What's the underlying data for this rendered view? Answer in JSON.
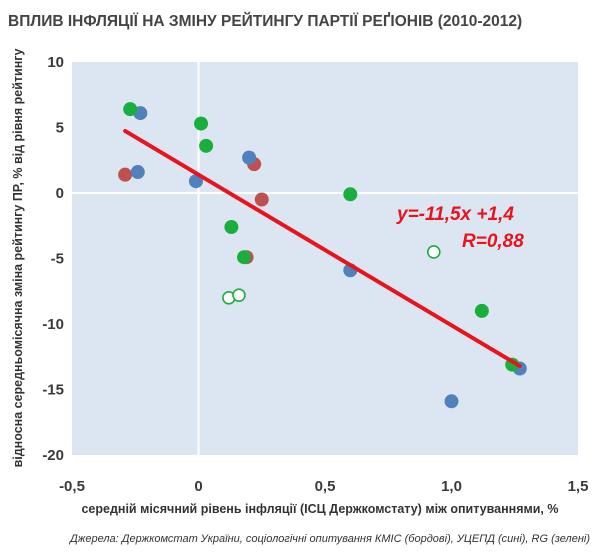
{
  "chart_data": {
    "type": "scatter",
    "title": "ВПЛИВ ІНФЛЯЦІЇ НА ЗМІНУ РЕЙТИНГУ ПАРТІЇ РЕҐІОНІВ (2010-2012)",
    "xlabel": "середній місячний рівень інфляції (ІСЦ Держкомстату) між опитуваннями, %",
    "ylabel": "відносна середньомісячна зміна рейтингу ПР, % від рівня рейтингу",
    "source": "Джерела: Держкомстат України, соціологічні опитування КМІС (бордові), УЦЕПД (сині), RG (зелені)",
    "xlim": [
      -0.5,
      1.5
    ],
    "ylim": [
      -20,
      10
    ],
    "x_ticks": [
      -0.5,
      0,
      0.5,
      1.0,
      1.5
    ],
    "x_tick_labels": [
      "-0,5",
      "0",
      "0,5",
      "1,0",
      "1,5"
    ],
    "y_ticks": [
      -20,
      -15,
      -10,
      -5,
      0,
      5,
      10
    ],
    "y_tick_labels": [
      "-20",
      "-15",
      "-10",
      "-5",
      "0",
      "5",
      "10"
    ],
    "grid": false,
    "colors": {
      "bordo": "#c0504d",
      "blue": "#4f81bd",
      "green": "#1aae3c",
      "trend": "#e8141c",
      "plot_bg": "#dce6f2"
    },
    "series": [
      {
        "key": "kmis",
        "color": "#c0504d",
        "hollow": false,
        "points": [
          {
            "x": -0.29,
            "y": 1.4
          },
          {
            "x": 0.19,
            "y": -4.9
          },
          {
            "x": 0.22,
            "y": 2.2
          },
          {
            "x": 0.25,
            "y": -0.5
          }
        ]
      },
      {
        "key": "ucepd",
        "color": "#4f81bd",
        "hollow": false,
        "points": [
          {
            "x": -0.23,
            "y": 6.1
          },
          {
            "x": -0.24,
            "y": 1.6
          },
          {
            "x": -0.01,
            "y": 0.9
          },
          {
            "x": 0.2,
            "y": 2.7
          },
          {
            "x": 0.6,
            "y": -5.9
          },
          {
            "x": 1.0,
            "y": -15.9
          },
          {
            "x": 1.27,
            "y": -13.4
          }
        ]
      },
      {
        "key": "rg",
        "color": "#1aae3c",
        "hollow": false,
        "points": [
          {
            "x": -0.27,
            "y": 6.4
          },
          {
            "x": 0.01,
            "y": 5.3
          },
          {
            "x": 0.03,
            "y": 3.6
          },
          {
            "x": 0.13,
            "y": -2.6
          },
          {
            "x": 0.18,
            "y": -4.9
          },
          {
            "x": 0.6,
            "y": -0.1
          },
          {
            "x": 1.12,
            "y": -9.0
          },
          {
            "x": 1.24,
            "y": -13.1
          }
        ]
      },
      {
        "key": "rg_hollow",
        "color": "#1aae3c",
        "hollow": true,
        "points": [
          {
            "x": 0.12,
            "y": -8.0
          },
          {
            "x": 0.16,
            "y": -7.8
          },
          {
            "x": 0.93,
            "y": -4.5
          }
        ]
      }
    ],
    "trendline": {
      "slope": -11.5,
      "intercept": 1.4,
      "x_start": -0.29,
      "x_end": 1.27
    },
    "annotations": {
      "equation": "y=-11,5x +1,4",
      "r_value": "R=0,88"
    }
  }
}
